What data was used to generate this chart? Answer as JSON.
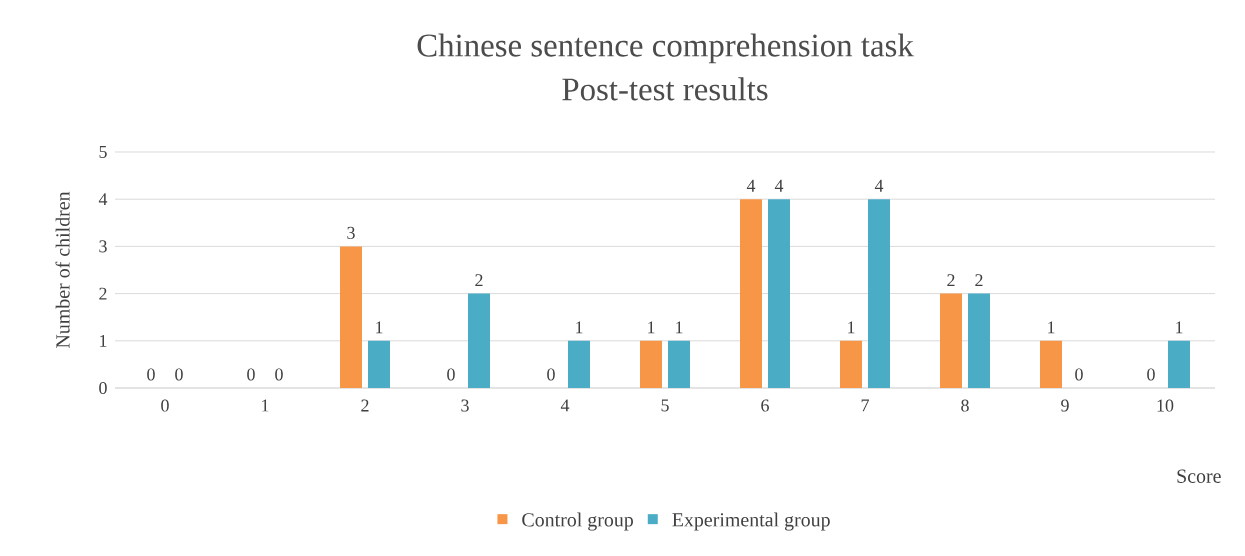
{
  "chart_data": {
    "type": "bar",
    "title": "Chinese sentence comprehension task",
    "subtitle": "Post-test results",
    "xlabel": "Score",
    "ylabel": "Number of children",
    "categories": [
      "0",
      "1",
      "2",
      "3",
      "4",
      "5",
      "6",
      "7",
      "8",
      "9",
      "10"
    ],
    "series": [
      {
        "name": "Control group",
        "color": "#f79646",
        "values": [
          0,
          0,
          3,
          0,
          0,
          1,
          4,
          1,
          2,
          1,
          0
        ]
      },
      {
        "name": "Experimental group",
        "color": "#4bacc6",
        "values": [
          0,
          0,
          1,
          2,
          1,
          1,
          4,
          4,
          2,
          0,
          1
        ]
      }
    ],
    "ylim": [
      0,
      5
    ],
    "yticks": [
      0,
      1,
      2,
      3,
      4,
      5
    ],
    "grid": "y",
    "legend": "bottom",
    "data_labels": true
  }
}
